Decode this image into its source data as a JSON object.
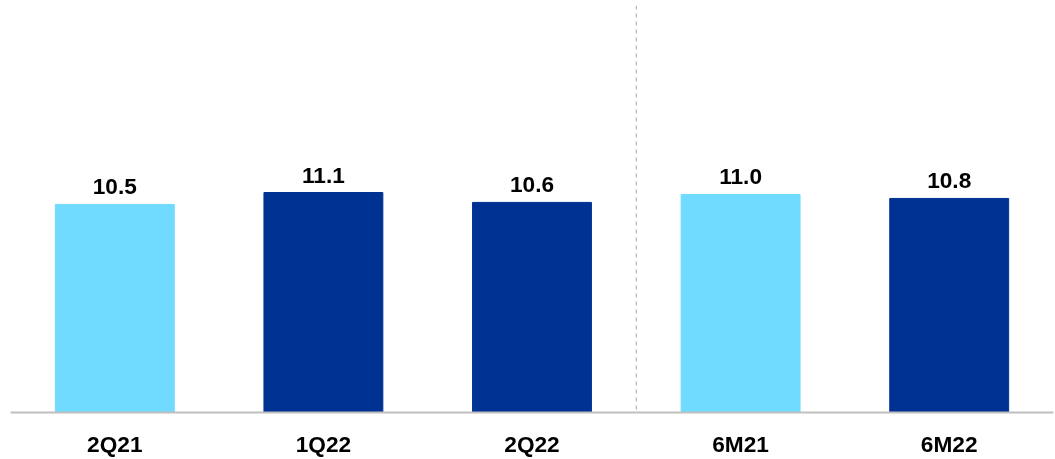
{
  "chart_data": {
    "type": "bar",
    "categories": [
      "2Q21",
      "1Q22",
      "2Q22",
      "6M21",
      "6M22"
    ],
    "values": [
      10.5,
      11.1,
      10.6,
      11.0,
      10.8
    ],
    "value_labels": [
      "10.5",
      "11.1",
      "10.6",
      "11.0",
      "10.8"
    ],
    "colors": [
      "#70dbff",
      "#003293",
      "#003293",
      "#70dbff",
      "#003293"
    ],
    "grid": false,
    "tick_labels": "x"
  }
}
